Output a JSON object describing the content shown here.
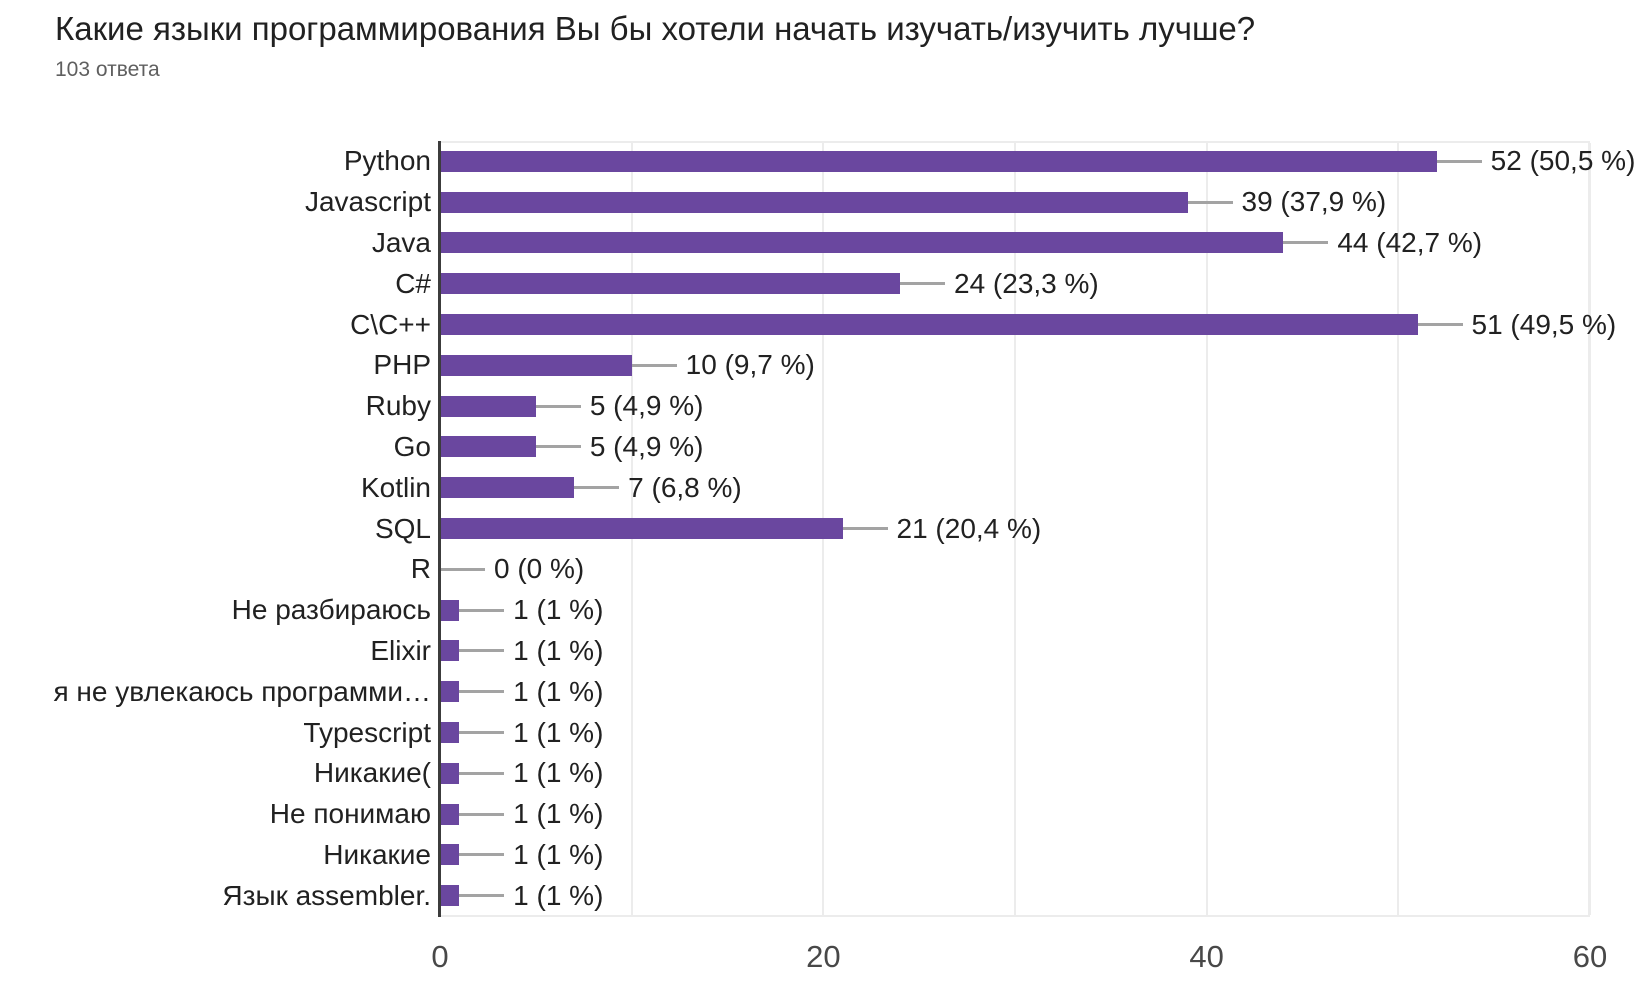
{
  "title": "Какие языки программирования Вы бы хотели начать изучать/изучить лучше?",
  "subtitle": "103 ответа",
  "chart_data": {
    "type": "bar",
    "orientation": "horizontal",
    "title": "Какие языки программирования Вы бы хотели начать изучать/изучить лучше?",
    "subtitle": "103 ответа",
    "categories": [
      "Python",
      "Javascript",
      "Java",
      "C#",
      "C\\C++",
      "PHP",
      "Ruby",
      "Go",
      "Kotlin",
      "SQL",
      "R",
      "Не разбираюсь",
      "Elixir",
      "я не увлекаюсь программи…",
      "Typescript",
      "Никакие(",
      "Не понимаю",
      "Никакие",
      "Язык assembler."
    ],
    "values": [
      52,
      39,
      44,
      24,
      51,
      10,
      5,
      5,
      7,
      21,
      0,
      1,
      1,
      1,
      1,
      1,
      1,
      1,
      1
    ],
    "annotations": [
      "52 (50,5 %)",
      "39 (37,9 %)",
      "44 (42,7 %)",
      "24 (23,3 %)",
      "51 (49,5 %)",
      "10 (9,7 %)",
      "5 (4,9 %)",
      "5 (4,9 %)",
      "7 (6,8 %)",
      "21 (20,4 %)",
      "0 (0 %)",
      "1 (1 %)",
      "1 (1 %)",
      "1 (1 %)",
      "1 (1 %)",
      "1 (1 %)",
      "1 (1 %)",
      "1 (1 %)",
      "1 (1 %)"
    ],
    "xlabel": "",
    "ylabel": "",
    "xlim": [
      0,
      60
    ],
    "xticks": [
      0,
      20,
      40,
      60
    ],
    "gridline_step": 10,
    "grid": "vertical",
    "legend_position": "none",
    "bar_color": "#6a479f",
    "axis_line_color": "#3c3c3c",
    "gridline_color": "#ececec"
  }
}
